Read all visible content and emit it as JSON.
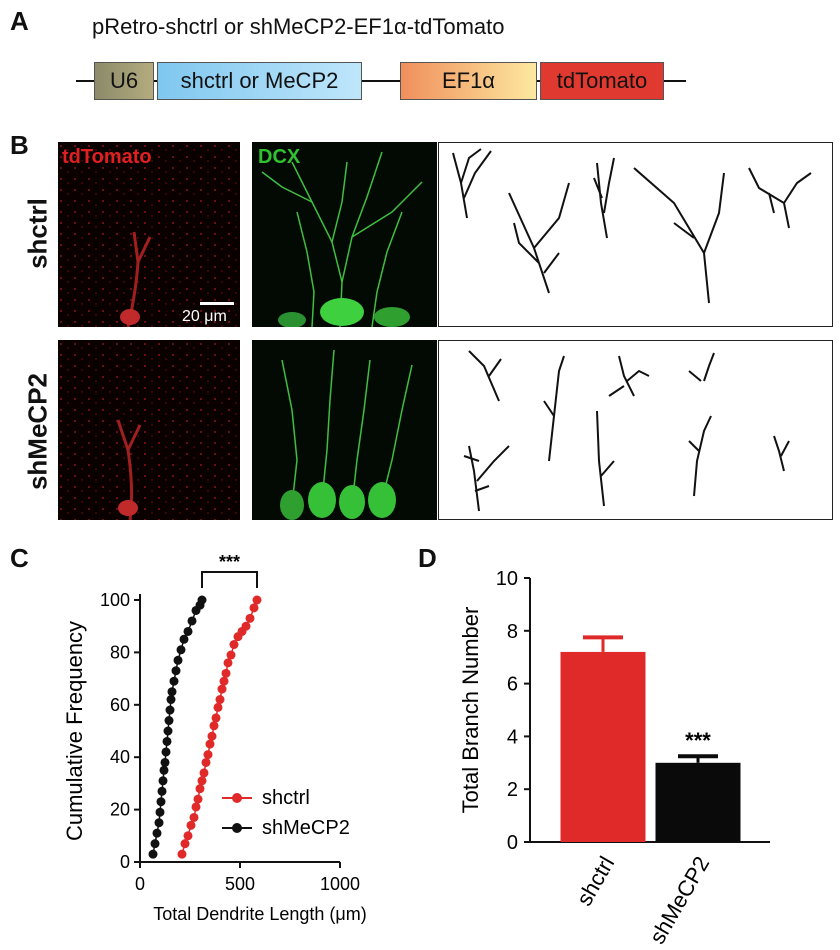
{
  "panel_a": {
    "letter": "A",
    "title": "pRetro-shctrl or shMeCP2-EF1α-tdTomato",
    "elements": [
      {
        "label": "U6",
        "color": "#a8a070"
      },
      {
        "label": "shctrl or MeCP2",
        "color": "#9fd4f2"
      },
      {
        "label": "EF1α",
        "color": "#f4b27a"
      },
      {
        "label": "tdTomato",
        "color": "#e03030"
      }
    ]
  },
  "panel_b": {
    "letter": "B",
    "channel_red": "tdTomato",
    "channel_green": "DCX",
    "row_top": "shctrl",
    "row_bottom": "shMeCP2",
    "scale_bar": "20 μm"
  },
  "panel_c": {
    "letter": "C",
    "significance": "***"
  },
  "panel_d": {
    "letter": "D",
    "significance": "***"
  },
  "chart_data": [
    {
      "type": "line",
      "id": "C",
      "xlabel": "Total Dendrite Length (μm)",
      "ylabel": "Cumulative Frequency",
      "xlim": [
        0,
        1000
      ],
      "ylim": [
        0,
        100
      ],
      "xticks": [
        0,
        500,
        1000
      ],
      "yticks": [
        0,
        20,
        40,
        60,
        80,
        100
      ],
      "legend": "bottom-right",
      "series": [
        {
          "name": "shctrl",
          "color": "#e02a2a",
          "x": [
            210,
            225,
            240,
            255,
            270,
            280,
            290,
            300,
            310,
            320,
            330,
            340,
            350,
            360,
            370,
            380,
            390,
            400,
            410,
            420,
            430,
            440,
            455,
            470,
            490,
            510,
            530,
            550,
            570,
            585
          ],
          "y": [
            3,
            7,
            10,
            14,
            17,
            21,
            24,
            28,
            31,
            34,
            38,
            41,
            45,
            48,
            52,
            55,
            59,
            62,
            66,
            69,
            72,
            76,
            79,
            83,
            86,
            88,
            90,
            93,
            97,
            100
          ]
        },
        {
          "name": "shMeCP2",
          "color": "#111111",
          "x": [
            65,
            75,
            85,
            95,
            100,
            105,
            110,
            115,
            120,
            125,
            130,
            135,
            140,
            145,
            150,
            155,
            160,
            170,
            180,
            190,
            205,
            220,
            240,
            260,
            280,
            300,
            310
          ],
          "y": [
            3,
            7,
            11,
            15,
            19,
            23,
            27,
            31,
            35,
            38,
            42,
            46,
            50,
            54,
            58,
            62,
            65,
            69,
            73,
            77,
            81,
            85,
            88,
            92,
            96,
            98,
            100
          ]
        }
      ]
    },
    {
      "type": "bar",
      "id": "D",
      "categories": [
        "shctrl",
        "shMeCP2"
      ],
      "values": [
        7.2,
        3.0
      ],
      "errors": [
        0.55,
        0.25
      ],
      "colors": [
        "#e02a2a",
        "#0a0a0a"
      ],
      "ylabel": "Total Branch Number",
      "ylim": [
        0,
        10
      ],
      "yticks": [
        0,
        2,
        4,
        6,
        8,
        10
      ]
    }
  ]
}
